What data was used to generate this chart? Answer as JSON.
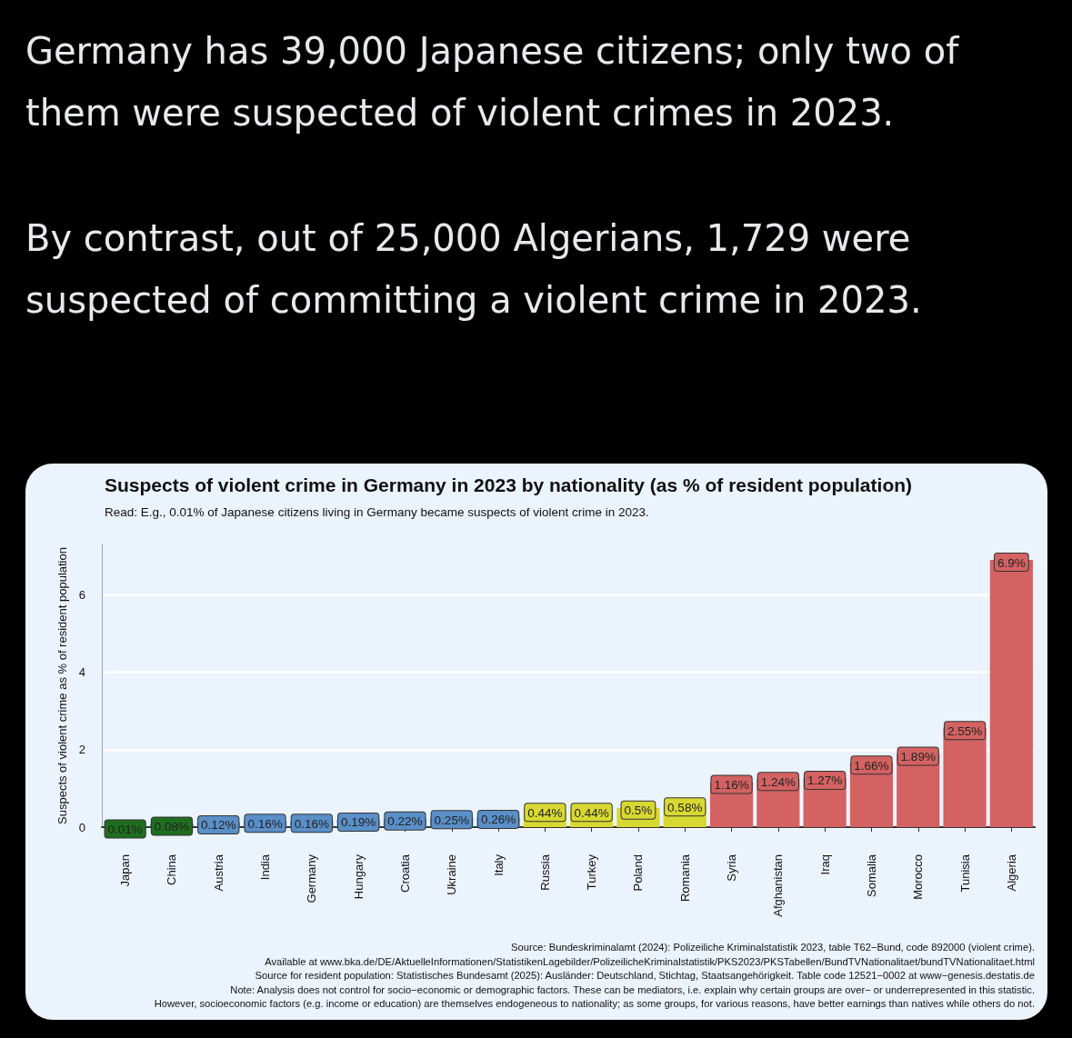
{
  "chart_data": {
    "type": "bar",
    "title": "Suspects of violent crime in Germany in 2023 by nationality (as % of resident population)",
    "subtitle": "Read: E.g., 0.01% of Japanese citizens living in Germany became suspects of violent crime in 2023.",
    "ylabel": "Suspects of violent crime as % of resident population",
    "categories": [
      "Japan",
      "China",
      "Austria",
      "India",
      "Germany",
      "Hungary",
      "Croatia",
      "Ukraine",
      "Italy",
      "Russia",
      "Turkey",
      "Poland",
      "Romania",
      "Syria",
      "Afghanistan",
      "Iraq",
      "Somalia",
      "Morocco",
      "Tunisia",
      "Algeria"
    ],
    "values": [
      0.01,
      0.08,
      0.12,
      0.16,
      0.16,
      0.19,
      0.22,
      0.25,
      0.26,
      0.44,
      0.44,
      0.5,
      0.58,
      1.16,
      1.24,
      1.27,
      1.66,
      1.89,
      2.55,
      6.9
    ],
    "value_labels": [
      "0.01%",
      "0.08%",
      "0.12%",
      "0.16%",
      "0.16%",
      "0.19%",
      "0.22%",
      "0.25%",
      "0.26%",
      "0.44%",
      "0.44%",
      "0.5%",
      "0.58%",
      "1.16%",
      "1.24%",
      "1.27%",
      "1.66%",
      "1.89%",
      "2.55%",
      "6.9%"
    ],
    "colors": [
      "#1f6e1f",
      "#1f6e1f",
      "#5a8fc8",
      "#5a8fc8",
      "#5a8fc8",
      "#5a8fc8",
      "#5a8fc8",
      "#5a8fc8",
      "#5a8fc8",
      "#d8d832",
      "#d8d832",
      "#d8d832",
      "#d8d832",
      "#d46262",
      "#d46262",
      "#d46262",
      "#d46262",
      "#d46262",
      "#d46262",
      "#d46262"
    ],
    "ylim": [
      0,
      7.3
    ],
    "yticks": [
      0,
      2,
      4,
      6
    ],
    "grid": "y",
    "annotations": [
      "Germany has 39,000 Japanese citizens; only two of them were suspected of violent crimes in 2023.",
      "By contrast, out of 25,000 Algerians, 1,729 were suspected of committing a violent crime in 2023.",
      "Source: Bundeskriminalamt (2024): Polizeiliche Kriminalstatistik 2023, table T62−Bund, code 892000 (violent crime).",
      "Available at www.bka.de/DE/AktuelleInformationen/StatistikenLagebilder/PolizeilicheKriminalstatistik/PKS2023/PKSTabellen/BundTVNationalitaet/bundTVNationalitaet.html",
      "Source for resident population: Statistisches Bundesamt (2025): Ausländer: Deutschland, Stichtag, Staatsangehörigkeit. Table code 12521−0002 at www−genesis.destatis.de",
      "Note: Analysis does not control for socio−economic or demographic factors. These can be mediators, i.e. explain why certain groups are over− or underrepresented in this statistic.",
      "However, socioeconomic factors (e.g. income or education) are themselves endogeneous to nationality; as some groups, for various reasons, have better earnings than natives while others do not."
    ]
  }
}
